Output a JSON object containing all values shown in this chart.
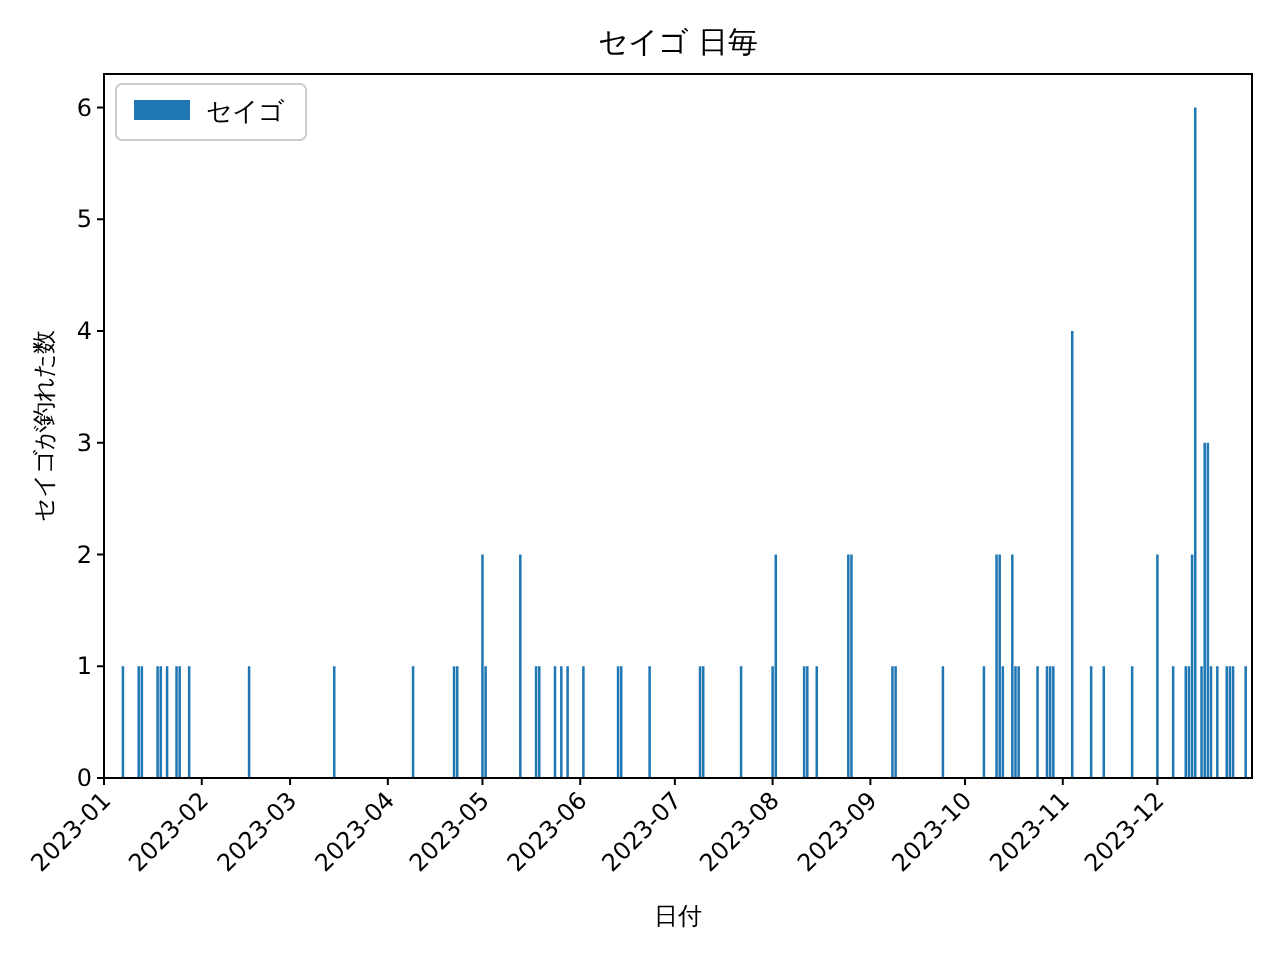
{
  "chart_data": {
    "type": "bar",
    "title": "セイゴ 日毎",
    "xlabel": "日付",
    "ylabel": "セイゴが釣れた数",
    "x": [
      "2023-01-07",
      "2023-01-12",
      "2023-01-13",
      "2023-01-18",
      "2023-01-19",
      "2023-01-21",
      "2023-01-24",
      "2023-01-25",
      "2023-01-28",
      "2023-02-16",
      "2023-03-15",
      "2023-04-09",
      "2023-04-22",
      "2023-04-23",
      "2023-05-01",
      "2023-05-02",
      "2023-05-13",
      "2023-05-18",
      "2023-05-19",
      "2023-05-24",
      "2023-05-26",
      "2023-05-28",
      "2023-06-02",
      "2023-06-13",
      "2023-06-14",
      "2023-06-23",
      "2023-07-09",
      "2023-07-10",
      "2023-07-22",
      "2023-08-01",
      "2023-08-02",
      "2023-08-11",
      "2023-08-12",
      "2023-08-15",
      "2023-08-25",
      "2023-08-26",
      "2023-09-08",
      "2023-09-09",
      "2023-09-24",
      "2023-10-07",
      "2023-10-11",
      "2023-10-12",
      "2023-10-13",
      "2023-10-16",
      "2023-10-17",
      "2023-10-18",
      "2023-10-24",
      "2023-10-27",
      "2023-10-28",
      "2023-10-29",
      "2023-11-04",
      "2023-11-10",
      "2023-11-14",
      "2023-11-23",
      "2023-12-01",
      "2023-12-06",
      "2023-12-10",
      "2023-12-11",
      "2023-12-12",
      "2023-12-13",
      "2023-12-15",
      "2023-12-16",
      "2023-12-17",
      "2023-12-18",
      "2023-12-20",
      "2023-12-23",
      "2023-12-24",
      "2023-12-25",
      "2023-12-29"
    ],
    "series": [
      {
        "name": "セイゴ",
        "color": "#1f77b4",
        "values": [
          1,
          1,
          1,
          1,
          1,
          1,
          1,
          1,
          1,
          1,
          1,
          1,
          1,
          1,
          2,
          1,
          2,
          1,
          1,
          1,
          1,
          1,
          1,
          1,
          1,
          1,
          1,
          1,
          1,
          1,
          2,
          1,
          1,
          1,
          2,
          2,
          1,
          1,
          1,
          1,
          2,
          2,
          1,
          2,
          1,
          1,
          1,
          1,
          1,
          1,
          4,
          1,
          1,
          1,
          2,
          1,
          1,
          1,
          2,
          6,
          1,
          3,
          3,
          1,
          1,
          1,
          1,
          1,
          1
        ]
      }
    ],
    "xlim": [
      "2023-01-01",
      "2023-12-31"
    ],
    "xticks": [
      {
        "value": "2023-01-01",
        "label": "2023-01"
      },
      {
        "value": "2023-02-01",
        "label": "2023-02"
      },
      {
        "value": "2023-03-01",
        "label": "2023-03"
      },
      {
        "value": "2023-04-01",
        "label": "2023-04"
      },
      {
        "value": "2023-05-01",
        "label": "2023-05"
      },
      {
        "value": "2023-06-01",
        "label": "2023-06"
      },
      {
        "value": "2023-07-01",
        "label": "2023-07"
      },
      {
        "value": "2023-08-01",
        "label": "2023-08"
      },
      {
        "value": "2023-09-01",
        "label": "2023-09"
      },
      {
        "value": "2023-10-01",
        "label": "2023-10"
      },
      {
        "value": "2023-11-01",
        "label": "2023-11"
      },
      {
        "value": "2023-12-01",
        "label": "2023-12"
      }
    ],
    "ylim": [
      0,
      6.3
    ],
    "yticks": [
      0,
      1,
      2,
      3,
      4,
      5,
      6
    ],
    "legend": "top left"
  }
}
